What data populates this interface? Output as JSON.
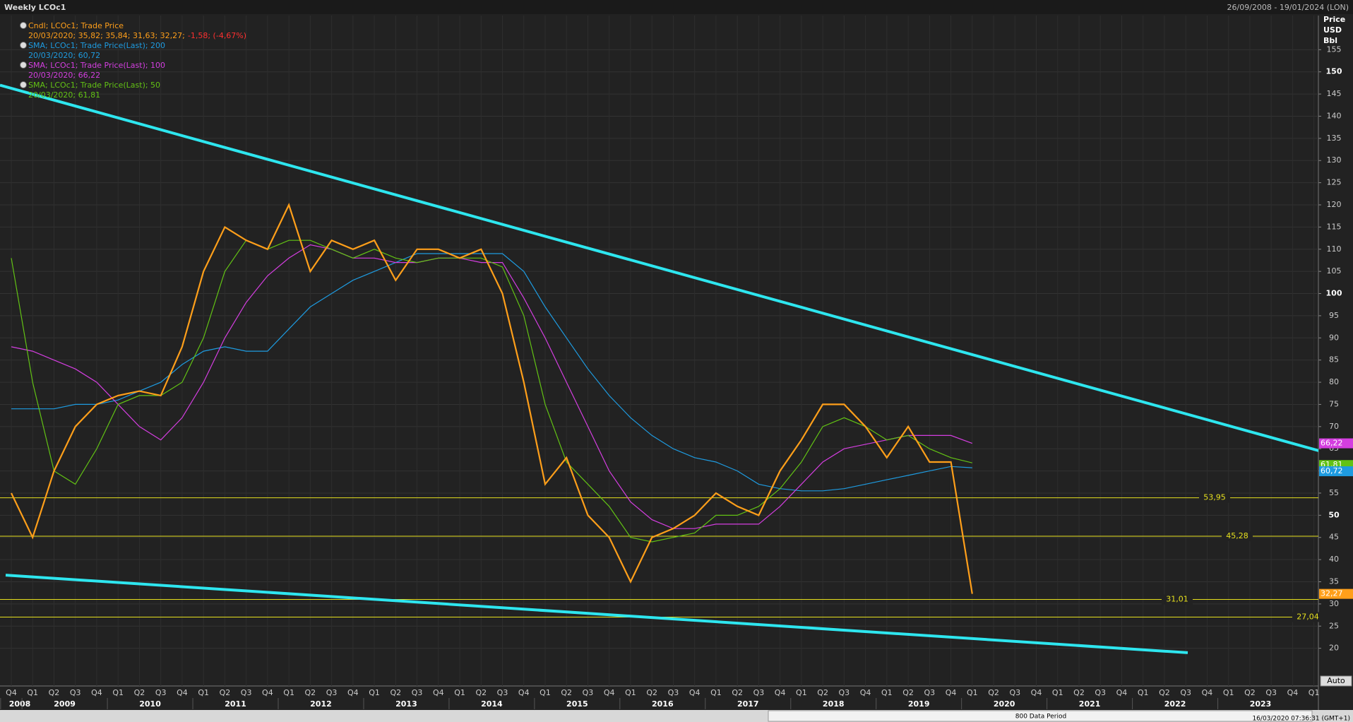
{
  "chart_data": {
    "type": "line",
    "title": "Weekly LCOc1",
    "date_range": "26/09/2008 - 19/01/2024 (LON)",
    "axis_title": [
      "Price",
      "USD",
      "Bbl"
    ],
    "categories": [
      "Q4",
      "Q1",
      "Q2",
      "Q3",
      "Q4",
      "Q1",
      "Q2",
      "Q3",
      "Q4",
      "Q1",
      "Q2",
      "Q3",
      "Q4",
      "Q1",
      "Q2",
      "Q3",
      "Q4",
      "Q1",
      "Q2",
      "Q3",
      "Q4",
      "Q1",
      "Q2",
      "Q3",
      "Q4",
      "Q1",
      "Q2",
      "Q3",
      "Q4",
      "Q1",
      "Q2",
      "Q3",
      "Q4",
      "Q1",
      "Q2",
      "Q3",
      "Q4",
      "Q1",
      "Q2",
      "Q3",
      "Q4",
      "Q1",
      "Q2",
      "Q3",
      "Q4",
      "Q1",
      "Q2",
      "Q3",
      "Q4",
      "Q1",
      "Q2",
      "Q3",
      "Q4",
      "Q1",
      "Q2",
      "Q3",
      "Q4",
      "Q1",
      "Q2",
      "Q3",
      "Q4",
      "Q1"
    ],
    "years": [
      "2008",
      "2009",
      "2010",
      "2011",
      "2012",
      "2013",
      "2014",
      "2015",
      "2016",
      "2017",
      "2018",
      "2019",
      "2020",
      "2021",
      "2022",
      "2023"
    ],
    "series": [
      {
        "name": "Cndl; LCOc1; Trade Price",
        "detail": "20/03/2020; 35,82; 35,84; 31,63; 32,27;",
        "change": "-1,58; (-4,67%)",
        "last_label": "32,27",
        "color": "#ff9f1a",
        "values": [
          55,
          45,
          60,
          70,
          75,
          77,
          78,
          77,
          88,
          105,
          115,
          112,
          110,
          120,
          105,
          112,
          110,
          112,
          103,
          110,
          110,
          108,
          110,
          100,
          80,
          57,
          63,
          50,
          45,
          35,
          45,
          47,
          50,
          55,
          52,
          50,
          60,
          67,
          75,
          75,
          70,
          63,
          70,
          62,
          62,
          32.27,
          null,
          null,
          null,
          null,
          null,
          null,
          null,
          null,
          null,
          null,
          null,
          null,
          null,
          null,
          null,
          null
        ]
      },
      {
        "name": "SMA; LCOc1; Trade Price(Last);  200",
        "detail": "20/03/2020; 60,72",
        "last_label": "60,72",
        "color": "#1e9be0",
        "values": [
          74,
          74,
          74,
          75,
          75,
          76,
          78,
          80,
          84,
          87,
          88,
          87,
          87,
          92,
          97,
          100,
          103,
          105,
          107,
          109,
          109,
          109,
          109,
          109,
          105,
          97,
          90,
          83,
          77,
          72,
          68,
          65,
          63,
          62,
          60,
          57,
          56,
          55.5,
          55.5,
          56,
          57,
          58,
          59,
          60,
          61,
          60.72,
          null,
          null,
          null,
          null,
          null,
          null,
          null,
          null,
          null,
          null,
          null,
          null,
          null,
          null,
          null,
          null
        ]
      },
      {
        "name": "SMA; LCOc1; Trade Price(Last);  100",
        "detail": "20/03/2020; 66,22",
        "last_label": "66,22",
        "color": "#d43ee0",
        "values": [
          88,
          87,
          85,
          83,
          80,
          75,
          70,
          67,
          72,
          80,
          90,
          98,
          104,
          108,
          111,
          110,
          108,
          108,
          107,
          107,
          108,
          108,
          107,
          107,
          99,
          90,
          80,
          70,
          60,
          53,
          49,
          47,
          47,
          48,
          48,
          48,
          52,
          57,
          62,
          65,
          66,
          67,
          68,
          68,
          68,
          66.22,
          null,
          null,
          null,
          null,
          null,
          null,
          null,
          null,
          null,
          null,
          null,
          null,
          null,
          null,
          null,
          null
        ]
      },
      {
        "name": "SMA; LCOc1; Trade Price(Last);  50",
        "detail": "20/03/2020; 61,81",
        "last_label": "61,81",
        "color": "#62c214",
        "values": [
          108,
          80,
          60,
          57,
          65,
          75,
          77,
          77,
          80,
          90,
          105,
          112,
          110,
          112,
          112,
          110,
          108,
          110,
          108,
          107,
          108,
          108,
          108,
          106,
          95,
          75,
          62,
          57,
          52,
          45,
          44,
          45,
          46,
          50,
          50,
          52,
          56,
          62,
          70,
          72,
          70,
          67,
          68,
          65,
          63,
          61.81,
          null,
          null,
          null,
          null,
          null,
          null,
          null,
          null,
          null,
          null,
          null,
          null,
          null,
          null,
          null,
          null
        ]
      }
    ],
    "levels": [
      {
        "value": 53.95,
        "label": "53,95"
      },
      {
        "value": 45.28,
        "label": "45,28"
      },
      {
        "value": 31.01,
        "label": "31,01"
      },
      {
        "value": 27.04,
        "label": "27,04"
      }
    ],
    "level_color": "#e6e01e",
    "trendlines": [
      {
        "values": [
          147,
          64.5
        ]
      },
      {
        "values": [
          36.5,
          19
        ]
      }
    ],
    "trend_color": "#2ee6ef",
    "ylim": [
      11.5,
      162.7
    ],
    "yticks": [
      20,
      25,
      30,
      35,
      40,
      45,
      50,
      55,
      60,
      65,
      70,
      75,
      80,
      85,
      90,
      95,
      100,
      105,
      110,
      115,
      120,
      125,
      130,
      135,
      140,
      145,
      150,
      155
    ],
    "grid": true,
    "footer": {
      "period": "800 Data Period",
      "timestamp": "16/03/2020 07:36:31 (GMT+1)",
      "scale_button": "Auto"
    }
  }
}
